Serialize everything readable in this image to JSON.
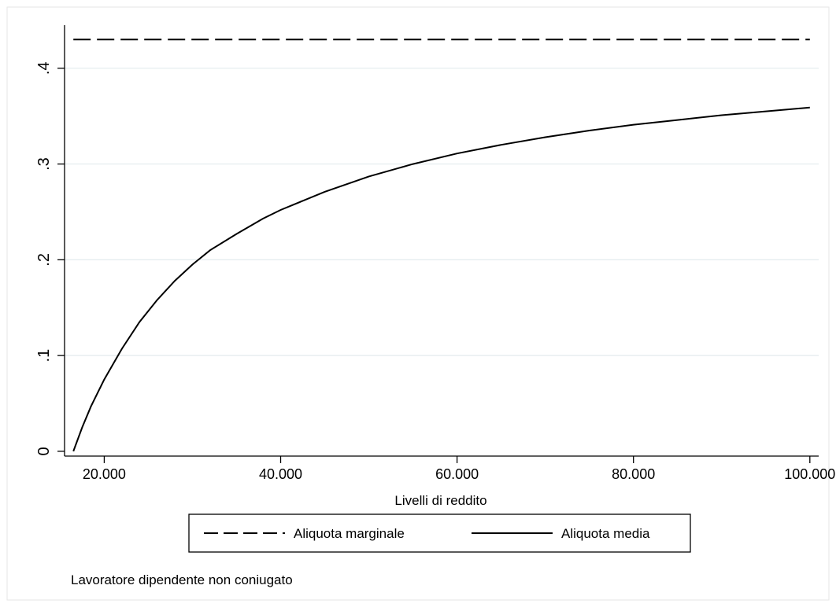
{
  "chart_data": {
    "type": "line",
    "title": "",
    "xlabel": "Livelli di reddito",
    "ylabel": "",
    "note": "Lavoratore dipendente non coniugato",
    "xlim": [
      15500,
      101000
    ],
    "ylim": [
      -0.005,
      0.445
    ],
    "x_ticks": [
      20000,
      40000,
      60000,
      80000,
      100000
    ],
    "x_tick_labels": [
      "20.000",
      "40.000",
      "60.000",
      "80.000",
      "100.000"
    ],
    "y_ticks": [
      0,
      0.1,
      0.2,
      0.3,
      0.4
    ],
    "y_tick_labels": [
      "0",
      ".1",
      ".2",
      ".3",
      ".4"
    ],
    "grid": "horizontal",
    "legend_position": "bottom",
    "series": [
      {
        "name": "Aliquota marginale",
        "style": "dashed",
        "color": "#000000",
        "x": [
          16500,
          100000
        ],
        "y": [
          0.43,
          0.43
        ]
      },
      {
        "name": "Aliquota media",
        "style": "solid",
        "color": "#000000",
        "x": [
          16500,
          17500,
          18500,
          20000,
          22000,
          24000,
          26000,
          28000,
          30000,
          32000,
          35000,
          38000,
          40000,
          45000,
          50000,
          55000,
          60000,
          65000,
          70000,
          75000,
          80000,
          85000,
          90000,
          95000,
          100000
        ],
        "y": [
          0.0,
          0.025,
          0.047,
          0.075,
          0.107,
          0.135,
          0.158,
          0.178,
          0.195,
          0.21,
          0.227,
          0.243,
          0.252,
          0.271,
          0.287,
          0.3,
          0.311,
          0.32,
          0.328,
          0.335,
          0.341,
          0.346,
          0.351,
          0.355,
          0.359
        ]
      }
    ]
  }
}
